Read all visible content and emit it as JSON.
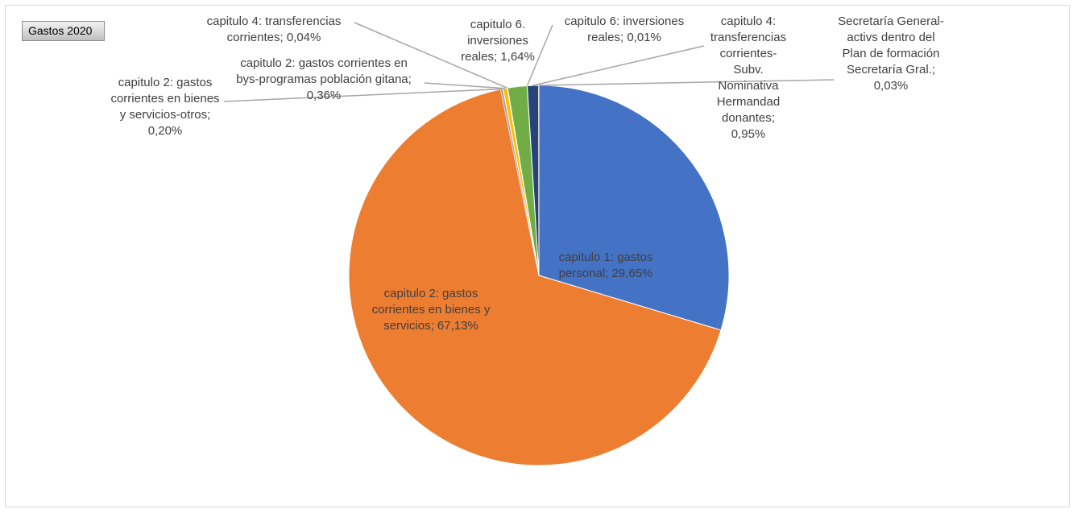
{
  "tab_label": "Gastos 2020",
  "colors": {
    "blue": "#4472c4",
    "orange": "#ed7d31",
    "gray": "#a5a5a5",
    "yellow": "#ffc000",
    "lightblue": "#5b9bd5",
    "green": "#70ad47",
    "navy": "#264478",
    "leader": "#a6a6a6"
  },
  "chart_data": {
    "type": "pie",
    "title": "",
    "slices": [
      {
        "name": "capitulo 1: gastos personal",
        "value": 29.65,
        "label": [
          "capitulo 1: gastos",
          "personal; 29,65%"
        ],
        "color": "#4472c4"
      },
      {
        "name": "capitulo 2: gastos corrientes en bienes y servicios",
        "value": 67.13,
        "label": [
          "capitulo 2: gastos",
          "corrientes en bienes y",
          "servicios; 67,13%"
        ],
        "color": "#ed7d31"
      },
      {
        "name": "capitulo 2: gastos corrientes en bienes y servicios-otros",
        "value": 0.2,
        "label": [
          "capitulo 2: gastos",
          "corrientes en bienes",
          "y servicios-otros;",
          "0,20%"
        ],
        "color": "#a5a5a5"
      },
      {
        "name": "capitulo 2: gastos corrientes en bys-programas población gitana",
        "value": 0.36,
        "label": [
          "capitulo 2: gastos corrientes en",
          "bys-programas población gitana;",
          "0,36%"
        ],
        "color": "#ffc000"
      },
      {
        "name": "capitulo 4: transferencias corrientes",
        "value": 0.04,
        "label": [
          "capitulo 4: transferencias",
          "corrientes; 0,04%"
        ],
        "color": "#5b9bd5"
      },
      {
        "name": "capitulo 6. inversiones reales",
        "value": 1.64,
        "label": [
          "capitulo 6.",
          "inversiones",
          "reales; 1,64%"
        ],
        "color": "#70ad47"
      },
      {
        "name": "capitulo 6: inversiones reales",
        "value": 0.01,
        "label": [
          "capitulo 6: inversiones",
          "reales; 0,01%"
        ],
        "color": "#264478"
      },
      {
        "name": "capitulo 4: transferencias corrientes-Subv. Nominativa Hermandad donantes",
        "value": 0.95,
        "label": [
          "capitulo 4:",
          "transferencias",
          "corrientes-",
          "Subv.",
          "Nominativa",
          "Hermandad",
          "donantes;",
          "0,95%"
        ],
        "color": "#264478"
      },
      {
        "name": "Secretaría General-activs dentro del Plan de formación Secretaría Gral.",
        "value": 0.03,
        "label": [
          "Secretaría General-",
          "activs dentro del",
          "Plan de formación",
          "Secretaría Gral.;",
          "0,03%"
        ],
        "color": "#9e480e"
      }
    ]
  }
}
